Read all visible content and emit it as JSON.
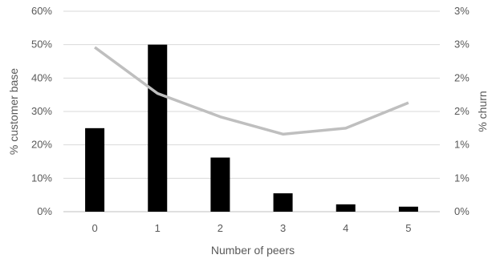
{
  "chart_data": {
    "type": "bar",
    "categories": [
      "0",
      "1",
      "2",
      "3",
      "4",
      "5"
    ],
    "xlabel": "Number of peers",
    "ylabel": "% customer base",
    "y2label": "% churn",
    "ylim": [
      0,
      60
    ],
    "y2lim": [
      0,
      3
    ],
    "yticks": [
      "0%",
      "10%",
      "20%",
      "30%",
      "40%",
      "50%",
      "60%"
    ],
    "y2ticks": [
      "0%",
      "1%",
      "1%",
      "2%",
      "2%",
      "3%",
      "3%"
    ],
    "grid": true,
    "legend": "none",
    "series": [
      {
        "type": "bar",
        "axis": "left",
        "color": "#000000",
        "values": [
          25.0,
          50.0,
          16.2,
          5.5,
          2.2,
          1.5
        ]
      },
      {
        "type": "line",
        "axis": "right",
        "color": "#bfbfbf",
        "values": [
          2.46,
          1.77,
          1.42,
          1.16,
          1.25,
          1.63
        ]
      }
    ]
  }
}
